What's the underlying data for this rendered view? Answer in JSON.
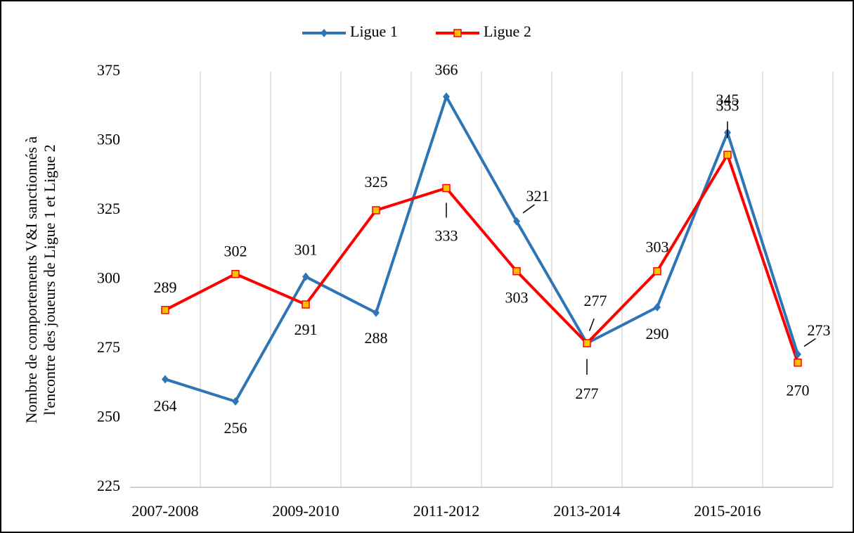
{
  "chart_data": {
    "type": "line",
    "y_label": [
      "Nombre de comportements V&I sanctionnés à",
      "l'encontre des joueurs de Ligue 1 et Ligue 2"
    ],
    "categories": [
      "2007-2008",
      null,
      "2009-2010",
      null,
      "2011-2012",
      null,
      "2013-2014",
      null,
      "2015-2016",
      null
    ],
    "series": [
      {
        "name": "Ligue 1",
        "color": "#2e75b6",
        "marker": "diamond",
        "values": [
          264,
          256,
          301,
          288,
          366,
          321,
          277,
          290,
          353,
          273
        ]
      },
      {
        "name": "Ligue 2",
        "color": "#ff0000",
        "marker": "square",
        "marker_fill": "#ffc000",
        "values": [
          289,
          302,
          291,
          325,
          333,
          303,
          277,
          303,
          345,
          270
        ]
      }
    ],
    "ylim": [
      225,
      375
    ],
    "yticks": [
      225,
      250,
      275,
      300,
      325,
      350,
      375
    ],
    "grid": "x",
    "legend": "top",
    "data_labels": true
  }
}
